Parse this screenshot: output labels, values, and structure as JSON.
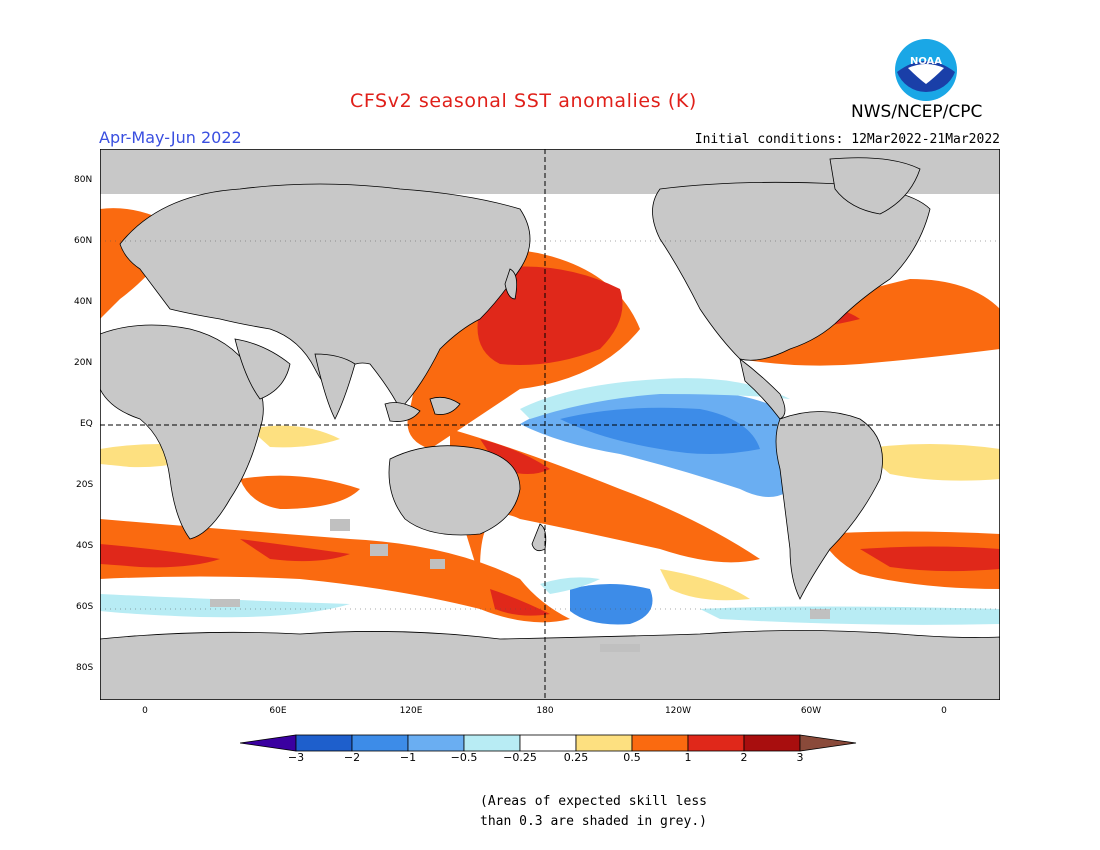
{
  "title": "CFSv2 seasonal SST anomalies (K)",
  "agency": "NWS/NCEP/CPC",
  "logo_text": "NOAA",
  "season": "Apr-May-Jun 2022",
  "initial_conditions": "Initial conditions: 12Mar2022-21Mar2022",
  "lat_labels": [
    "80N",
    "60N",
    "40N",
    "20N",
    "EQ",
    "20S",
    "40S",
    "60S",
    "80S"
  ],
  "lon_labels": [
    "0",
    "60E",
    "120E",
    "180",
    "120W",
    "60W",
    "0"
  ],
  "colorbar": {
    "tick_labels": [
      "-3",
      "-2",
      "-1",
      "-0.5",
      "-0.25",
      "0.25",
      "0.5",
      "1",
      "2",
      "3"
    ],
    "colors": [
      "#3a00a0",
      "#1e5fcc",
      "#3d8ce8",
      "#6aaef2",
      "#b8ecf4",
      "#ffffff",
      "#fde080",
      "#fa6a10",
      "#e0281a",
      "#a80e0e",
      "#8a4a3a"
    ]
  },
  "note_line1": "(Areas of expected skill less",
  "note_line2": "than 0.3 are shaded in grey.)",
  "colors": {
    "land": "#c8c8c8",
    "warm_strong": "#e0281a",
    "warm": "#fa6a10",
    "warm_light": "#fde080",
    "cool": "#3d8ce8",
    "cool_light": "#b8ecf4",
    "low_skill": "#c0c0c0"
  }
}
